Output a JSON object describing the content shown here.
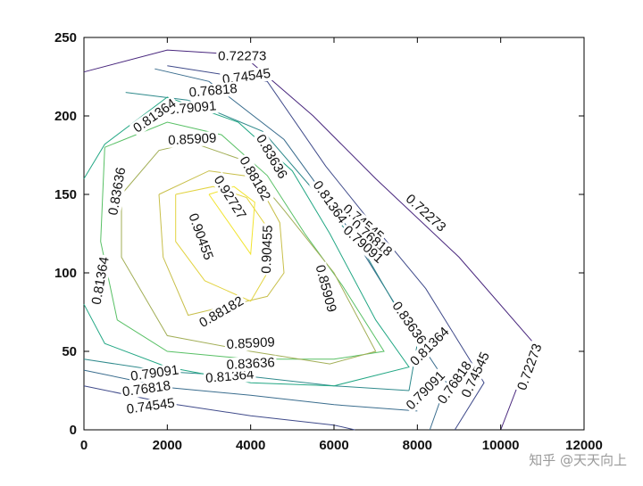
{
  "chart_data": {
    "type": "contour",
    "title": "",
    "xlabel": "",
    "ylabel": "",
    "xlim": [
      0,
      12000
    ],
    "ylim": [
      0,
      250
    ],
    "x_ticks": [
      "0",
      "2000",
      "4000",
      "6000",
      "8000",
      "10000",
      "12000"
    ],
    "y_ticks": [
      "0",
      "50",
      "100",
      "150",
      "200",
      "250"
    ],
    "grid": false,
    "levels": [
      {
        "value": "0.72273",
        "color": "#48267d",
        "paths": [
          [
            [
              0,
              228
            ],
            [
              2000,
              242
            ],
            [
              3800,
              239
            ],
            [
              5500,
              200
            ],
            [
              7000,
              160
            ],
            [
              9000,
              110
            ],
            [
              10800,
              55
            ],
            [
              10000,
              0
            ]
          ]
        ],
        "labels": [
          {
            "x": 3800,
            "y": 238,
            "angle": 0
          },
          {
            "x": 8200,
            "y": 138,
            "angle": 42
          },
          {
            "x": 10700,
            "y": 40,
            "angle": -70
          }
        ]
      },
      {
        "value": "0.74545",
        "color": "#3f4a8a",
        "paths": [
          [
            [
              2000,
              232
            ],
            [
              4400,
              222
            ],
            [
              5800,
              168
            ],
            [
              6800,
              135
            ],
            [
              8200,
              90
            ],
            [
              9600,
              30
            ],
            [
              8900,
              0
            ]
          ],
          [
            [
              0,
              28
            ],
            [
              2000,
              17
            ],
            [
              4000,
              9
            ],
            [
              6000,
              3
            ],
            [
              6500,
              0
            ]
          ]
        ],
        "labels": [
          {
            "x": 3900,
            "y": 225,
            "angle": -8
          },
          {
            "x": 6700,
            "y": 132,
            "angle": 40
          },
          {
            "x": 9400,
            "y": 35,
            "angle": -65
          },
          {
            "x": 1600,
            "y": 15,
            "angle": -8
          }
        ]
      },
      {
        "value": "0.76818",
        "color": "#3a6d8e",
        "paths": [
          [
            [
              1700,
              230
            ],
            [
              3000,
              222
            ],
            [
              4800,
              185
            ],
            [
              6300,
              130
            ],
            [
              7700,
              70
            ],
            [
              8700,
              30
            ],
            [
              8300,
              0
            ]
          ],
          [
            [
              0,
              38
            ],
            [
              2000,
              27
            ],
            [
              4000,
              22
            ],
            [
              6000,
              16
            ],
            [
              8000,
              12
            ]
          ]
        ],
        "labels": [
          {
            "x": 3100,
            "y": 216,
            "angle": -5
          },
          {
            "x": 6900,
            "y": 122,
            "angle": 40
          },
          {
            "x": 8900,
            "y": 30,
            "angle": -55
          },
          {
            "x": 1500,
            "y": 26,
            "angle": -8
          }
        ]
      },
      {
        "value": "0.79091",
        "color": "#2f8a8c",
        "paths": [
          [
            [
              1000,
              215
            ],
            [
              2500,
              210
            ],
            [
              4300,
              190
            ],
            [
              5600,
              150
            ],
            [
              6800,
              110
            ],
            [
              8000,
              55
            ],
            [
              7800,
              25
            ]
          ],
          [
            [
              0,
              45
            ],
            [
              2000,
              37
            ],
            [
              4000,
              34
            ],
            [
              6000,
              28
            ],
            [
              7800,
              25
            ]
          ]
        ],
        "labels": [
          {
            "x": 2600,
            "y": 205,
            "angle": -5
          },
          {
            "x": 6700,
            "y": 118,
            "angle": 42
          },
          {
            "x": 8200,
            "y": 25,
            "angle": -45
          },
          {
            "x": 1700,
            "y": 36,
            "angle": -8
          }
        ]
      },
      {
        "value": "0.81364",
        "color": "#22a784",
        "paths": [
          [
            [
              0,
              160
            ],
            [
              500,
              182
            ],
            [
              2000,
              212
            ],
            [
              3700,
              196
            ],
            [
              5000,
              165
            ],
            [
              5900,
              125
            ],
            [
              7000,
              70
            ],
            [
              7800,
              40
            ],
            [
              6000,
              28
            ],
            [
              4000,
              30
            ],
            [
              2000,
              40
            ],
            [
              500,
              55
            ],
            [
              0,
              80
            ]
          ]
        ],
        "labels": [
          {
            "x": 1700,
            "y": 200,
            "angle": -35
          },
          {
            "x": 5900,
            "y": 145,
            "angle": 55
          },
          {
            "x": 400,
            "y": 95,
            "angle": -80
          },
          {
            "x": 8300,
            "y": 53,
            "angle": -45
          },
          {
            "x": 3500,
            "y": 34,
            "angle": -5
          }
        ]
      },
      {
        "value": "0.83636",
        "color": "#58c065",
        "paths": [
          [
            [
              500,
              180
            ],
            [
              2000,
              196
            ],
            [
              3300,
              188
            ],
            [
              4400,
              162
            ],
            [
              5300,
              125
            ],
            [
              6200,
              92
            ],
            [
              7200,
              50
            ],
            [
              6000,
              45
            ],
            [
              4000,
              45
            ],
            [
              2000,
              50
            ],
            [
              800,
              70
            ],
            [
              400,
              120
            ],
            [
              500,
              180
            ]
          ]
        ],
        "labels": [
          {
            "x": 4500,
            "y": 174,
            "angle": 60
          },
          {
            "x": 800,
            "y": 152,
            "angle": -80
          },
          {
            "x": 7800,
            "y": 68,
            "angle": 55
          },
          {
            "x": 4000,
            "y": 42,
            "angle": -3
          }
        ]
      },
      {
        "value": "0.85909",
        "color": "#a2ae56",
        "paths": [
          [
            [
              900,
              150
            ],
            [
              1800,
              178
            ],
            [
              2600,
              183
            ],
            [
              3800,
              172
            ],
            [
              4800,
              140
            ],
            [
              6000,
              100
            ],
            [
              7000,
              50
            ],
            [
              5900,
              42
            ],
            [
              4000,
              50
            ],
            [
              2000,
              60
            ],
            [
              900,
              110
            ],
            [
              900,
              150
            ]
          ]
        ],
        "labels": [
          {
            "x": 2600,
            "y": 185,
            "angle": -3
          },
          {
            "x": 5800,
            "y": 90,
            "angle": 75
          },
          {
            "x": 4000,
            "y": 55,
            "angle": -3
          }
        ]
      },
      {
        "value": "0.88182",
        "color": "#c8bf4a",
        "paths": [
          [
            [
              1800,
              150
            ],
            [
              3000,
              165
            ],
            [
              4100,
              161
            ],
            [
              4700,
              132
            ],
            [
              4800,
              100
            ],
            [
              4400,
              85
            ],
            [
              3600,
              80
            ],
            [
              2500,
              73
            ],
            [
              1900,
              110
            ],
            [
              1800,
              150
            ]
          ]
        ],
        "labels": [
          {
            "x": 4100,
            "y": 160,
            "angle": 60
          },
          {
            "x": 3300,
            "y": 75,
            "angle": -30
          }
        ]
      },
      {
        "value": "0.90455",
        "color": "#e2d340",
        "paths": [
          [
            [
              2200,
              150
            ],
            [
              3100,
              155
            ],
            [
              3900,
              148
            ],
            [
              4500,
              125
            ],
            [
              4400,
              100
            ],
            [
              4000,
              82
            ],
            [
              2900,
              95
            ],
            [
              2200,
              120
            ],
            [
              2200,
              150
            ]
          ]
        ],
        "labels": [
          {
            "x": 2800,
            "y": 123,
            "angle": 70
          },
          {
            "x": 4400,
            "y": 115,
            "angle": -88
          }
        ]
      },
      {
        "value": "0.92727",
        "color": "#f2e42f",
        "paths": [
          [
            [
              3000,
              150
            ],
            [
              3600,
              155
            ],
            [
              4100,
              145
            ],
            [
              4000,
              112
            ],
            [
              3000,
              150
            ]
          ]
        ],
        "labels": [
          {
            "x": 3500,
            "y": 148,
            "angle": 58
          }
        ]
      }
    ]
  },
  "watermark": "知乎 @天天向上"
}
